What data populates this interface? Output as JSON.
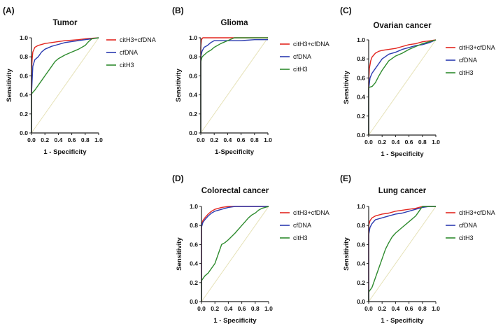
{
  "figure": {
    "colors": {
      "combined": "#e3261f",
      "cfdna": "#2b3bb0",
      "cith3": "#2e8b2e",
      "diagonal": "#e6e2b8",
      "axis": "#222222"
    }
  },
  "chart_data": [
    {
      "type": "line",
      "panel_label": "(A)",
      "title": "Tumor",
      "xlabel": "1 - Specificity",
      "ylabel": "Sensitivity",
      "xlim": [
        0,
        1
      ],
      "ylim": [
        0,
        1
      ],
      "x_ticks": [
        "0.0",
        "0.2",
        "0.4",
        "0.6",
        "0.8",
        "1.0"
      ],
      "y_ticks": [
        "0.0",
        "0.2",
        "0.4",
        "0.6",
        "0.8",
        "1.0"
      ],
      "legend": [
        "citH3+cfDNA",
        "cfDNA",
        "citH3"
      ],
      "series": [
        {
          "name": "citH3+cfDNA",
          "color_key": "combined",
          "x": [
            0,
            0,
            0.01,
            0.02,
            0.05,
            0.1,
            0.2,
            0.3,
            0.4,
            0.5,
            0.6,
            0.7,
            0.8,
            0.9,
            1.0
          ],
          "y": [
            0,
            0.65,
            0.78,
            0.85,
            0.9,
            0.92,
            0.94,
            0.95,
            0.96,
            0.97,
            0.975,
            0.98,
            0.99,
            0.995,
            1.0
          ]
        },
        {
          "name": "cfDNA",
          "color_key": "cfdna",
          "x": [
            0,
            0,
            0.02,
            0.05,
            0.1,
            0.15,
            0.2,
            0.3,
            0.4,
            0.5,
            0.6,
            0.7,
            0.8,
            0.9,
            1.0
          ],
          "y": [
            0,
            0.41,
            0.7,
            0.77,
            0.8,
            0.85,
            0.88,
            0.91,
            0.93,
            0.95,
            0.96,
            0.97,
            0.98,
            0.99,
            1.0
          ]
        },
        {
          "name": "citH3",
          "color_key": "cith3",
          "x": [
            0,
            0,
            0.05,
            0.1,
            0.15,
            0.2,
            0.25,
            0.3,
            0.35,
            0.4,
            0.5,
            0.6,
            0.7,
            0.8,
            0.85,
            0.9,
            1.0
          ],
          "y": [
            0,
            0.41,
            0.45,
            0.5,
            0.55,
            0.6,
            0.65,
            0.7,
            0.75,
            0.78,
            0.82,
            0.85,
            0.88,
            0.92,
            0.96,
            0.99,
            1.0
          ]
        }
      ]
    },
    {
      "type": "line",
      "panel_label": "(B)",
      "title": "Glioma",
      "xlabel": "1-Specificity",
      "ylabel": "Sensitivity",
      "xlim": [
        0,
        1
      ],
      "ylim": [
        0,
        1
      ],
      "x_ticks": [
        "0.0",
        "0.2",
        "0.4",
        "0.6",
        "0.8",
        "1.0"
      ],
      "y_ticks": [
        "0.0",
        "0.2",
        "0.4",
        "0.6",
        "0.8",
        "1.0"
      ],
      "legend": [
        "citH3+cfDNA",
        "cfDNA",
        "citH3"
      ],
      "series": [
        {
          "name": "citH3+cfDNA",
          "color_key": "combined",
          "x": [
            0,
            0,
            0.01,
            0.03,
            0.1,
            1.0
          ],
          "y": [
            0,
            0.9,
            0.98,
            1.0,
            1.0,
            1.0
          ]
        },
        {
          "name": "cfDNA",
          "color_key": "cfdna",
          "x": [
            0,
            0,
            0.02,
            0.05,
            0.1,
            0.15,
            0.2,
            0.4,
            0.6,
            0.8,
            1.0
          ],
          "y": [
            0,
            0.8,
            0.86,
            0.9,
            0.92,
            0.95,
            0.97,
            0.97,
            0.97,
            0.98,
            0.98
          ]
        },
        {
          "name": "citH3",
          "color_key": "cith3",
          "x": [
            0,
            0,
            0.02,
            0.05,
            0.1,
            0.15,
            0.2,
            0.3,
            0.4,
            0.5,
            0.6,
            0.8,
            1.0
          ],
          "y": [
            0,
            0.75,
            0.8,
            0.82,
            0.85,
            0.87,
            0.9,
            0.94,
            0.97,
            1.0,
            1.0,
            1.0,
            1.0
          ]
        }
      ]
    },
    {
      "type": "line",
      "panel_label": "(C)",
      "title": "Ovarian cancer",
      "xlabel": "1 - Specificity",
      "ylabel": "Sensitivity",
      "xlim": [
        0,
        1
      ],
      "ylim": [
        0,
        1
      ],
      "x_ticks": [
        "0.0",
        "0.2",
        "0.4",
        "0.6",
        "0.8",
        "1.0"
      ],
      "y_ticks": [
        "0.0",
        "0.2",
        "0.4",
        "0.6",
        "0.8",
        "1.0"
      ],
      "legend": [
        "citH3+cfDNA",
        "cfDNA",
        "citH3"
      ],
      "series": [
        {
          "name": "citH3+cfDNA",
          "color_key": "combined",
          "x": [
            0,
            0,
            0.01,
            0.03,
            0.05,
            0.1,
            0.15,
            0.2,
            0.3,
            0.4,
            0.5,
            0.6,
            0.7,
            0.8,
            0.9,
            1.0
          ],
          "y": [
            0,
            0.55,
            0.7,
            0.78,
            0.82,
            0.86,
            0.88,
            0.89,
            0.9,
            0.91,
            0.93,
            0.95,
            0.96,
            0.98,
            0.99,
            1.0
          ]
        },
        {
          "name": "cfDNA",
          "color_key": "cfdna",
          "x": [
            0,
            0,
            0.02,
            0.05,
            0.1,
            0.15,
            0.2,
            0.3,
            0.4,
            0.5,
            0.6,
            0.7,
            0.8,
            0.9,
            1.0
          ],
          "y": [
            0,
            0.48,
            0.6,
            0.65,
            0.7,
            0.75,
            0.8,
            0.85,
            0.87,
            0.9,
            0.92,
            0.94,
            0.95,
            0.97,
            1.0
          ]
        },
        {
          "name": "citH3",
          "color_key": "cith3",
          "x": [
            0,
            0,
            0.05,
            0.1,
            0.15,
            0.2,
            0.25,
            0.3,
            0.4,
            0.5,
            0.6,
            0.7,
            0.8,
            0.9,
            1.0
          ],
          "y": [
            0,
            0.5,
            0.51,
            0.55,
            0.62,
            0.68,
            0.73,
            0.78,
            0.83,
            0.86,
            0.9,
            0.93,
            0.96,
            0.98,
            1.0
          ]
        }
      ]
    },
    {
      "type": "line",
      "panel_label": "(D)",
      "title": "Colorectal cancer",
      "xlabel": "1 - Specificity",
      "ylabel": "Sensitivity",
      "xlim": [
        0,
        1
      ],
      "ylim": [
        0,
        1
      ],
      "x_ticks": [
        "0.0",
        "0.2",
        "0.4",
        "0.6",
        "0.8",
        "1.0"
      ],
      "y_ticks": [
        "0.0",
        "0.2",
        "0.4",
        "0.6",
        "0.8",
        "1.0"
      ],
      "legend": [
        "citH3+cfDNA",
        "cfDNA",
        "citH3"
      ],
      "series": [
        {
          "name": "citH3+cfDNA",
          "color_key": "combined",
          "x": [
            0,
            0,
            0.02,
            0.05,
            0.1,
            0.15,
            0.2,
            0.3,
            0.4,
            0.6,
            0.8,
            1.0
          ],
          "y": [
            0,
            0.8,
            0.85,
            0.88,
            0.92,
            0.95,
            0.97,
            0.99,
            1.0,
            1.0,
            1.0,
            1.0
          ]
        },
        {
          "name": "cfDNA",
          "color_key": "cfdna",
          "x": [
            0,
            0,
            0.02,
            0.05,
            0.1,
            0.15,
            0.2,
            0.3,
            0.4,
            0.5,
            0.6,
            0.8,
            1.0
          ],
          "y": [
            0,
            0.78,
            0.83,
            0.86,
            0.9,
            0.93,
            0.95,
            0.97,
            0.99,
            1.0,
            1.0,
            1.0,
            1.0
          ]
        },
        {
          "name": "citH3",
          "color_key": "cith3",
          "x": [
            0,
            0,
            0.05,
            0.1,
            0.15,
            0.2,
            0.25,
            0.3,
            0.35,
            0.4,
            0.5,
            0.6,
            0.65,
            0.7,
            0.75,
            0.8,
            0.85,
            0.9,
            1.0
          ],
          "y": [
            0,
            0.22,
            0.27,
            0.3,
            0.35,
            0.4,
            0.5,
            0.6,
            0.62,
            0.65,
            0.72,
            0.8,
            0.84,
            0.88,
            0.91,
            0.93,
            0.96,
            0.98,
            1.0
          ]
        }
      ]
    },
    {
      "type": "line",
      "panel_label": "(E)",
      "title": "Lung cancer",
      "xlabel": "1 - Specificity",
      "ylabel": "Sensitivity",
      "xlim": [
        0,
        1
      ],
      "ylim": [
        0,
        1
      ],
      "x_ticks": [
        "0.0",
        "0.2",
        "0.4",
        "0.6",
        "0.8",
        "1.0"
      ],
      "y_ticks": [
        "0.0",
        "0.2",
        "0.4",
        "0.6",
        "0.8",
        "1.0"
      ],
      "legend": [
        "citH3+cfDNA",
        "cfDNA",
        "citH3"
      ],
      "series": [
        {
          "name": "citH3+cfDNA",
          "color_key": "combined",
          "x": [
            0,
            0,
            0.02,
            0.05,
            0.1,
            0.2,
            0.3,
            0.4,
            0.5,
            0.6,
            0.7,
            0.8,
            0.9,
            1.0
          ],
          "y": [
            0,
            0.8,
            0.85,
            0.88,
            0.9,
            0.92,
            0.93,
            0.95,
            0.96,
            0.97,
            0.98,
            1.0,
            1.0,
            1.0
          ]
        },
        {
          "name": "cfDNA",
          "color_key": "cfdna",
          "x": [
            0,
            0,
            0.02,
            0.05,
            0.1,
            0.2,
            0.3,
            0.4,
            0.5,
            0.6,
            0.7,
            0.8,
            0.9,
            1.0
          ],
          "y": [
            0,
            0.7,
            0.78,
            0.82,
            0.86,
            0.88,
            0.9,
            0.92,
            0.93,
            0.95,
            0.97,
            0.99,
            1.0,
            1.0
          ]
        },
        {
          "name": "citH3",
          "color_key": "cith3",
          "x": [
            0,
            0,
            0.05,
            0.1,
            0.15,
            0.2,
            0.25,
            0.3,
            0.35,
            0.4,
            0.5,
            0.6,
            0.7,
            0.75,
            0.8,
            1.0
          ],
          "y": [
            0,
            0.1,
            0.15,
            0.25,
            0.35,
            0.45,
            0.55,
            0.62,
            0.68,
            0.72,
            0.78,
            0.84,
            0.9,
            0.95,
            1.0,
            1.0
          ]
        }
      ]
    }
  ]
}
